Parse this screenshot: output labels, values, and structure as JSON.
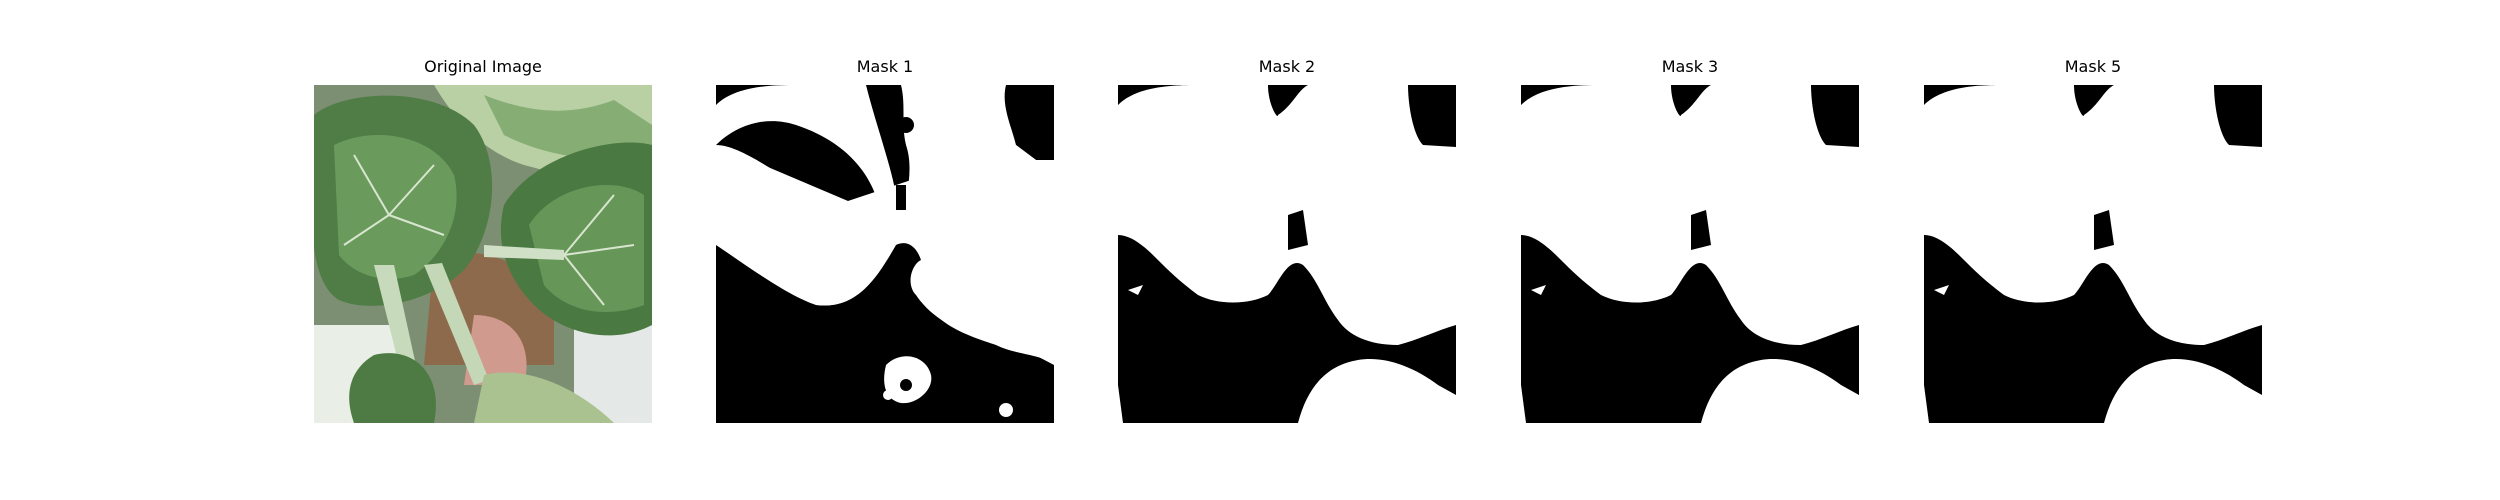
{
  "panels": [
    {
      "title": "Original Image"
    },
    {
      "title": "Mask 1"
    },
    {
      "title": "Mask 2"
    },
    {
      "title": "Mask 3"
    },
    {
      "title": "Mask 5"
    }
  ],
  "colors": {
    "background": "#ffffff",
    "mask_fg": "#ffffff",
    "mask_bg": "#000000",
    "leaf_dark": "#3f6b3a",
    "leaf_mid": "#6d9a5d",
    "leaf_light": "#a7c48f",
    "stem": "#c9dcc0"
  }
}
